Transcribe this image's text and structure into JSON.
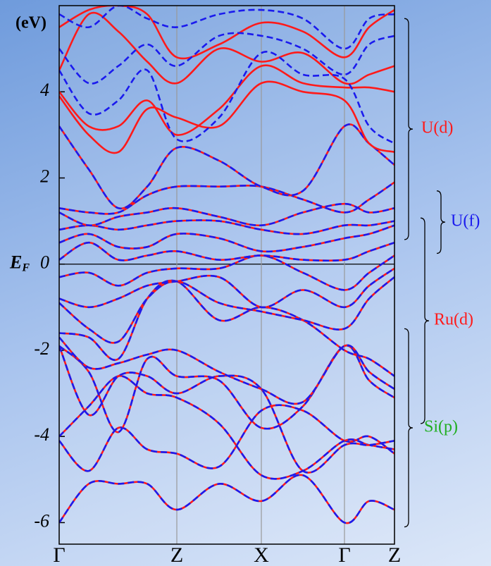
{
  "chart_data": {
    "type": "line",
    "ylabel": "(eV)",
    "fermi_label": {
      "symbol": "E",
      "subscript": "F"
    },
    "x": [
      0,
      42,
      84,
      125,
      167,
      227,
      287,
      346,
      405,
      440,
      476
    ],
    "xlim": [
      0,
      476
    ],
    "xticks": [
      {
        "value": 0,
        "label": "Γ"
      },
      {
        "value": 167,
        "label": "Z"
      },
      {
        "value": 287,
        "label": "X"
      },
      {
        "value": 405,
        "label": "Γ"
      },
      {
        "value": 476,
        "label": "Z"
      }
    ],
    "ylim": [
      -6.5,
      6.0
    ],
    "yticks": [
      -6,
      -4,
      -2,
      0,
      2,
      4
    ],
    "fermi_level": 0,
    "grid": true,
    "series": [
      {
        "color": "#1a1aee",
        "dash": true,
        "underlay": "#ff1a1a",
        "values": [
          -6.0,
          -5.1,
          -5.1,
          -5.1,
          -5.7,
          -5.1,
          -5.5,
          -4.9,
          -6.0,
          -5.5,
          -5.7
        ]
      },
      {
        "color": "#1a1aee",
        "dash": true,
        "underlay": "#ff1a1a",
        "values": [
          -4.1,
          -4.8,
          -3.8,
          -4.3,
          -4.4,
          -4.7,
          -3.4,
          -3.4,
          -4.1,
          -4.0,
          -4.4
        ]
      },
      {
        "color": "#1a1aee",
        "dash": true,
        "underlay": "#ff1a1a",
        "values": [
          -4.0,
          -3.3,
          -2.6,
          -3.0,
          -3.1,
          -3.7,
          -4.9,
          -4.8,
          -4.1,
          -4.2,
          -4.3
        ]
      },
      {
        "color": "#1a1aee",
        "dash": true,
        "underlay": "#ff1a1a",
        "values": [
          -1.9,
          -3.5,
          -2.6,
          -2.6,
          -3.0,
          -2.6,
          -2.9,
          -4.8,
          -4.2,
          -4.2,
          -4.1
        ]
      },
      {
        "color": "#1a1aee",
        "dash": true,
        "underlay": "#ff1a1a",
        "values": [
          -1.9,
          -2.5,
          -3.9,
          -2.2,
          -2.6,
          -2.7,
          -3.8,
          -3.3,
          -1.9,
          -2.7,
          -3.1
        ]
      },
      {
        "color": "#1a1aee",
        "dash": true,
        "underlay": "#ff1a1a",
        "values": [
          -1.7,
          -2.4,
          -2.3,
          -2.1,
          -2.0,
          -2.5,
          -2.9,
          -3.2,
          -1.9,
          -2.5,
          -2.9
        ]
      },
      {
        "color": "#1a1aee",
        "dash": true,
        "underlay": "#ff1a1a",
        "values": [
          -1.6,
          -1.7,
          -2.2,
          -0.8,
          -0.4,
          -1.3,
          -1.0,
          -1.3,
          -2.0,
          -2.2,
          -2.6
        ]
      },
      {
        "color": "#1a1aee",
        "dash": true,
        "underlay": "#ff1a1a",
        "values": [
          -0.9,
          -1.5,
          -1.8,
          -0.8,
          -0.4,
          -0.9,
          -1.1,
          -1.3,
          -1.5,
          -0.8,
          -0.3
        ]
      },
      {
        "color": "#1a1aee",
        "dash": true,
        "underlay": "#ff1a1a",
        "values": [
          -0.8,
          -1.0,
          -0.8,
          -0.5,
          -0.4,
          -0.3,
          -1.0,
          -0.6,
          -1.0,
          -0.5,
          -0.1
        ]
      },
      {
        "color": "#1a1aee",
        "dash": true,
        "underlay": "#ff1a1a",
        "values": [
          -0.3,
          -0.2,
          -0.5,
          -0.2,
          -0.1,
          -0.1,
          0.2,
          -0.2,
          -0.6,
          -0.2,
          0.2
        ]
      },
      {
        "color": "#1a1aee",
        "dash": true,
        "underlay": "#ff1a1a",
        "values": [
          0.1,
          0.5,
          0.1,
          0.2,
          0.3,
          0.1,
          0.2,
          0.1,
          0.1,
          0.3,
          0.5
        ]
      },
      {
        "color": "#1a1aee",
        "dash": true,
        "underlay": "#ff1a1a",
        "values": [
          0.5,
          0.7,
          0.4,
          0.4,
          0.7,
          0.6,
          0.3,
          0.4,
          0.6,
          0.7,
          0.9
        ]
      },
      {
        "color": "#1a1aee",
        "dash": true,
        "underlay": "#ff1a1a",
        "values": [
          0.8,
          0.9,
          0.8,
          0.9,
          1.0,
          1.0,
          0.8,
          0.7,
          0.9,
          0.9,
          1.0
        ]
      },
      {
        "color": "#1a1aee",
        "dash": true,
        "underlay": "#ff1a1a",
        "values": [
          1.2,
          0.9,
          1.1,
          1.2,
          1.3,
          1.1,
          0.9,
          1.2,
          1.4,
          1.2,
          1.3
        ]
      },
      {
        "color": "#1a1aee",
        "dash": true,
        "underlay": "#ff1a1a",
        "values": [
          1.3,
          1.2,
          1.2,
          1.6,
          1.8,
          1.8,
          1.8,
          1.5,
          1.2,
          1.5,
          1.9
        ]
      },
      {
        "color": "#1a1aee",
        "dash": true,
        "underlay": "#ff1a1a",
        "values": [
          3.2,
          2.2,
          1.3,
          1.8,
          2.7,
          2.4,
          1.8,
          1.7,
          3.2,
          2.8,
          2.3
        ]
      },
      {
        "color": "#ff1a1a",
        "dash": false,
        "values": [
          4.0,
          3.2,
          3.2,
          3.8,
          3.0,
          3.6,
          4.6,
          4.2,
          4.1,
          4.1,
          4.0
        ]
      },
      {
        "color": "#ff1a1a",
        "dash": false,
        "values": [
          4.5,
          5.8,
          5.4,
          4.7,
          4.2,
          5.0,
          4.7,
          4.9,
          4.2,
          4.4,
          4.6
        ]
      },
      {
        "color": "#ff1a1a",
        "dash": false,
        "values": [
          5.5,
          5.9,
          6.0,
          5.8,
          4.8,
          5.1,
          5.6,
          5.4,
          4.8,
          5.5,
          5.9
        ]
      },
      {
        "color": "#ff1a1a",
        "dash": false,
        "values": [
          3.9,
          3.0,
          2.6,
          3.6,
          3.4,
          3.2,
          4.2,
          4.0,
          3.8,
          2.8,
          2.6
        ]
      },
      {
        "color": "#1a1aee",
        "dash": true,
        "values": [
          4.5,
          3.5,
          3.8,
          4.5,
          2.9,
          3.4,
          4.9,
          4.4,
          4.3,
          3.2,
          2.8
        ]
      },
      {
        "color": "#1a1aee",
        "dash": true,
        "values": [
          5.0,
          4.2,
          4.6,
          5.1,
          4.6,
          5.3,
          5.3,
          5.0,
          4.4,
          5.1,
          5.3
        ]
      },
      {
        "color": "#1a1aee",
        "dash": true,
        "values": [
          5.8,
          5.5,
          6.0,
          5.7,
          5.5,
          5.8,
          5.9,
          5.7,
          5.0,
          5.7,
          5.8
        ]
      }
    ],
    "annotations": [
      {
        "text": "U(d)",
        "color": "#ff1a1a",
        "range": [
          0.57,
          5.7
        ]
      },
      {
        "text": "U(f)",
        "color": "#1a1aee",
        "range": [
          0.25,
          1.7
        ]
      },
      {
        "text": "Ru(d)",
        "color": "#ff1a1a",
        "range": [
          -3.7,
          1.07
        ]
      },
      {
        "text": "Si(p)",
        "color": "#1fae1f",
        "range": [
          -6.1,
          -1.5
        ]
      }
    ]
  }
}
